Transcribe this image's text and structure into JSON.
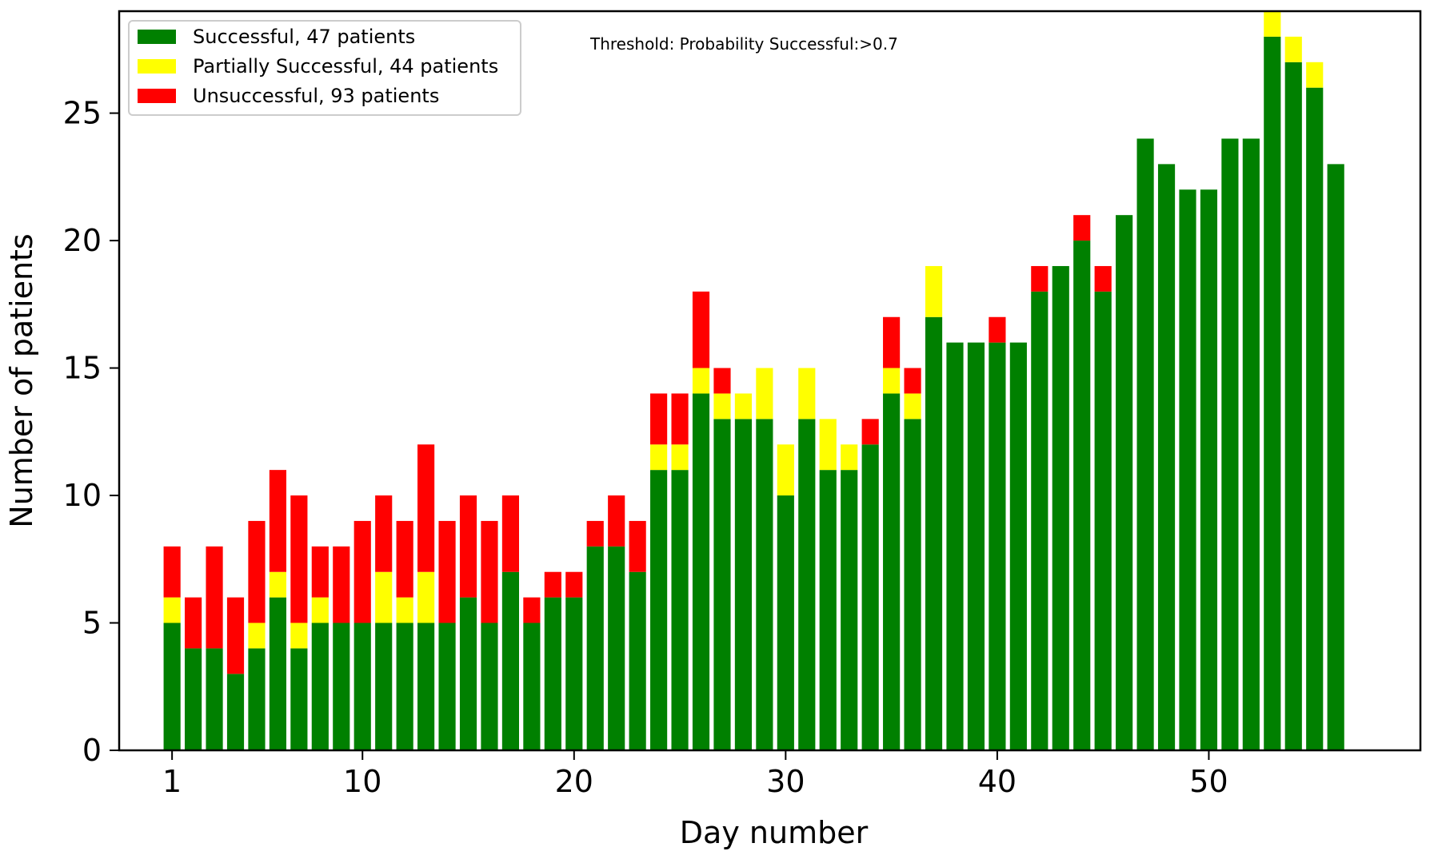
{
  "chart_data": {
    "type": "bar",
    "stacked": true,
    "xlabel": "Day number",
    "ylabel": "Number of patients",
    "annotation": "Threshold: Probability Successful:>0.7",
    "xlim": [
      -1.5,
      60
    ],
    "ylim": [
      0,
      29
    ],
    "x_ticks": [
      1,
      10,
      20,
      30,
      40,
      50
    ],
    "y_ticks": [
      0,
      5,
      10,
      15,
      20,
      25
    ],
    "legend_position": "top-left",
    "x": [
      1,
      2,
      3,
      4,
      5,
      6,
      7,
      8,
      9,
      10,
      11,
      12,
      13,
      14,
      15,
      16,
      17,
      18,
      19,
      20,
      21,
      22,
      23,
      24,
      25,
      26,
      27,
      28,
      29,
      30,
      31,
      32,
      33,
      34,
      35,
      36,
      37,
      38,
      39,
      40,
      41,
      42,
      43,
      44,
      45,
      46,
      47,
      48,
      49,
      50,
      51,
      52,
      53,
      54,
      55,
      56
    ],
    "series": [
      {
        "name": "Successful, 47 patients",
        "color": "#008000",
        "values": [
          5,
          4,
          4,
          3,
          4,
          6,
          4,
          5,
          5,
          5,
          5,
          5,
          5,
          5,
          6,
          5,
          7,
          5,
          6,
          6,
          8,
          8,
          7,
          11,
          11,
          14,
          13,
          13,
          13,
          10,
          13,
          11,
          11,
          12,
          14,
          13,
          17,
          16,
          16,
          16,
          16,
          18,
          19,
          20,
          18,
          21,
          24,
          23,
          22,
          22,
          24,
          24,
          28,
          27,
          26,
          23
        ]
      },
      {
        "name": "Partially Successful, 44 patients",
        "color": "#ffff00",
        "values": [
          1,
          0,
          0,
          0,
          1,
          1,
          1,
          1,
          0,
          0,
          2,
          1,
          2,
          0,
          0,
          0,
          0,
          0,
          0,
          0,
          0,
          0,
          0,
          1,
          1,
          1,
          1,
          1,
          2,
          2,
          2,
          2,
          1,
          0,
          1,
          1,
          2,
          0,
          0,
          0,
          0,
          0,
          0,
          0,
          0,
          0,
          0,
          0,
          0,
          0,
          0,
          0,
          1,
          1,
          1,
          0
        ]
      },
      {
        "name": "Unsuccessful, 93 patients",
        "color": "#ff0000",
        "values": [
          2,
          2,
          4,
          3,
          4,
          4,
          5,
          2,
          3,
          4,
          3,
          3,
          5,
          4,
          4,
          4,
          3,
          1,
          1,
          1,
          1,
          2,
          2,
          2,
          2,
          3,
          1,
          0,
          0,
          0,
          0,
          0,
          0,
          1,
          2,
          1,
          0,
          0,
          0,
          1,
          0,
          1,
          0,
          1,
          1,
          0,
          0,
          0,
          0,
          0,
          0,
          0,
          0,
          0,
          0,
          0
        ]
      }
    ]
  }
}
